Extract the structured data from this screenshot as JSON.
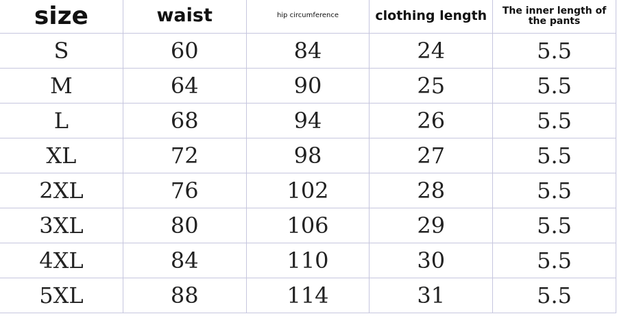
{
  "headers": [
    "size",
    "waist",
    "hip circumference",
    "clothing length",
    "The inner length of the pants"
  ],
  "rows": [
    [
      "S",
      "60",
      "84",
      "24",
      "5.5"
    ],
    [
      "M",
      "64",
      "90",
      "25",
      "5.5"
    ],
    [
      "L",
      "68",
      "94",
      "26",
      "5.5"
    ],
    [
      "XL",
      "72",
      "98",
      "27",
      "5.5"
    ],
    [
      "2XL",
      "76",
      "102",
      "28",
      "5.5"
    ],
    [
      "3XL",
      "80",
      "106",
      "29",
      "5.5"
    ],
    [
      "4XL",
      "84",
      "110",
      "30",
      "5.5"
    ],
    [
      "5XL",
      "88",
      "114",
      "31",
      "5.5"
    ]
  ]
}
